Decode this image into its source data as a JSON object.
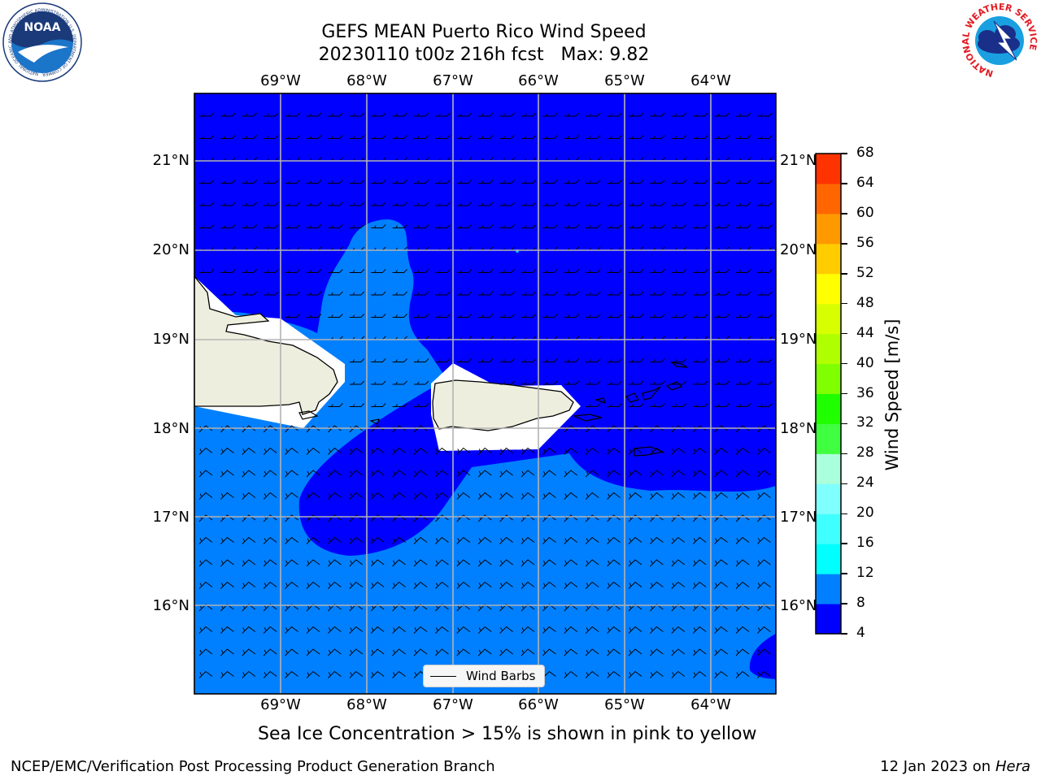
{
  "title": {
    "line1": "GEFS MEAN Puerto Rico Wind Speed",
    "line2": "20230110 t00z 216h fcst   Max: 9.82"
  },
  "map": {
    "lon_labels": [
      "69°W",
      "68°W",
      "67°W",
      "66°W",
      "65°W",
      "64°W"
    ],
    "lat_labels": [
      "21°N",
      "20°N",
      "19°N",
      "18°N",
      "17°N",
      "16°N"
    ],
    "land_color": "#eeeede",
    "grid_color": "#b3b3b3",
    "legend_label": "Wind Barbs"
  },
  "colorbar": {
    "label": "Wind Speed [m/s]",
    "ticks": [
      "4",
      "8",
      "12",
      "16",
      "20",
      "24",
      "28",
      "32",
      "36",
      "40",
      "44",
      "48",
      "52",
      "56",
      "60",
      "64",
      "68"
    ],
    "colors": [
      "#0000ff",
      "#0080ff",
      "#00ffff",
      "#40ffff",
      "#80ffff",
      "#aaffdd",
      "#40ff40",
      "#20ff00",
      "#80ff00",
      "#b0ff00",
      "#d8ff00",
      "#ffff00",
      "#ffcc00",
      "#ff9900",
      "#ff6600",
      "#ff3300",
      "#ff0000"
    ]
  },
  "logos": {
    "noaa_text": "NOAA",
    "nws_text": "NATIONAL WEATHER SERVICE",
    "noaa_ring_text": "NATIONAL OCEANIC AND ATMOSPHERIC ADMINISTRATION",
    "noaa_ring_bottom": "U.S. DEPARTMENT OF COMMERCE"
  },
  "caption": "Sea Ice Concentration > 15% is shown in pink to yellow",
  "footer": {
    "left": "NCEP/EMC/Verification Post Processing Product Generation Branch",
    "date": "12 Jan 2023 on ",
    "machine": "Hera"
  }
}
